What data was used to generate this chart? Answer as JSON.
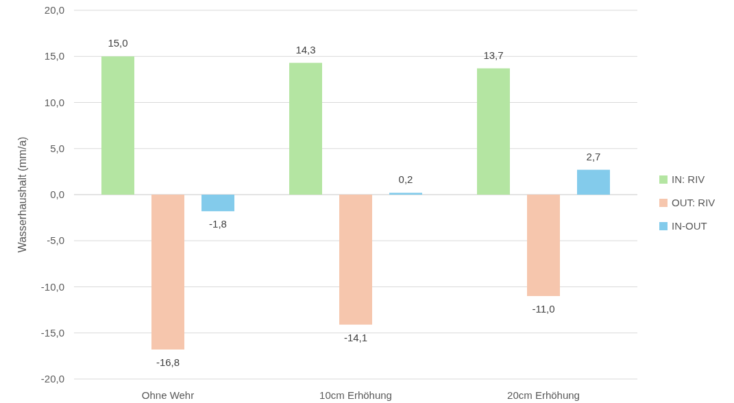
{
  "chart_data": {
    "type": "bar",
    "ylabel": "Wasserhaushalt (mm/a)",
    "categories": [
      "Ohne Wehr",
      "10cm Erhöhung",
      "20cm Erhöhung"
    ],
    "series": [
      {
        "name": "IN: RIV",
        "color": "#b4e5a2",
        "values": [
          15.0,
          14.3,
          13.7
        ],
        "value_labels": [
          "15,0",
          "14,3",
          "13,7"
        ]
      },
      {
        "name": "OUT: RIV",
        "color": "#f6c6ad",
        "values": [
          -16.8,
          -14.1,
          -11.0
        ],
        "value_labels": [
          "-16,8",
          "-14,1",
          "-11,0"
        ]
      },
      {
        "name": "IN-OUT",
        "color": "#83cbeb",
        "values": [
          -1.8,
          0.2,
          2.7
        ],
        "value_labels": [
          "-1,8",
          "0,2",
          "2,7"
        ]
      }
    ],
    "ylim": [
      -20,
      20
    ],
    "yticks": [
      {
        "value": -20,
        "label": "-20,0"
      },
      {
        "value": -15,
        "label": "-15,0"
      },
      {
        "value": -10,
        "label": "-10,0"
      },
      {
        "value": -5,
        "label": "-5,0"
      },
      {
        "value": 0,
        "label": "0,0"
      },
      {
        "value": 5,
        "label": "5,0"
      },
      {
        "value": 10,
        "label": "10,0"
      },
      {
        "value": 15,
        "label": "15,0"
      },
      {
        "value": 20,
        "label": "20,0"
      }
    ],
    "grid": "y",
    "legend": "right"
  }
}
